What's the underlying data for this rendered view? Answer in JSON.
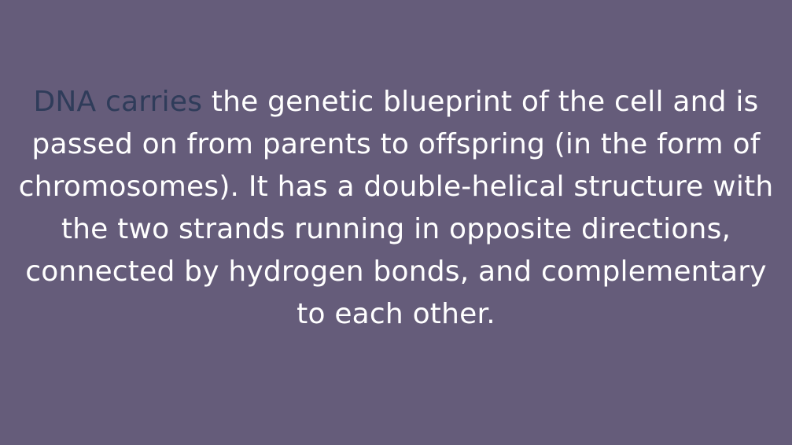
{
  "slide": {
    "highlight_text": "DNA carries",
    "body_text": " the genetic blueprint of the cell and is passed on from parents to offspring (in the form of chromosomes). It has a double-helical structure with the two strands running in opposite directions, connected by hydrogen bonds, and complementary to each other.",
    "colors": {
      "background": "#655c7a",
      "text": "#ffffff",
      "highlight": "#2f3c5a"
    }
  }
}
